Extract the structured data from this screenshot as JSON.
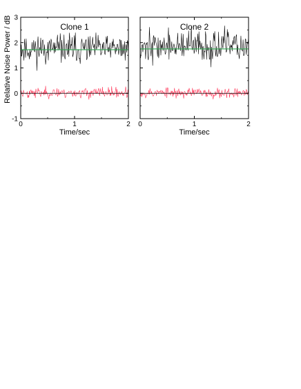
{
  "figure": {
    "ylabel": "Relative Noise Power / dB"
  },
  "chart_data": [
    {
      "type": "line",
      "title": "Clone 1",
      "xlabel": "Time/sec",
      "ylabel": "Relative Noise Power / dB",
      "xlim": [
        0,
        2
      ],
      "ylim": [
        -1,
        3
      ],
      "xticks": [
        0,
        1,
        2
      ],
      "yticks": [
        -1,
        0,
        1,
        2,
        3
      ],
      "grid": false,
      "legend": "none",
      "series": [
        {
          "color": "#000000",
          "mean": 1.75,
          "spread": 0.28,
          "points": 200,
          "seed": 11
        },
        {
          "color": "#2fa84f",
          "constant": 1.72
        },
        {
          "color": "#ff3355",
          "mean": 0.02,
          "spread": 0.1,
          "points": 200,
          "seed": 23
        },
        {
          "color": "#000000",
          "constant": 0
        }
      ]
    },
    {
      "type": "line",
      "title": "Clone 2",
      "xlabel": "Time/sec",
      "ylabel": "",
      "xlim": [
        0,
        2
      ],
      "ylim": [
        -1,
        3
      ],
      "xticks": [
        0,
        1,
        2
      ],
      "yticks": [
        -1,
        0,
        1,
        2,
        3
      ],
      "grid": false,
      "legend": "none",
      "series": [
        {
          "color": "#000000",
          "mean": 1.85,
          "spread": 0.3,
          "points": 200,
          "seed": 37
        },
        {
          "color": "#2fa84f",
          "constant": 1.75
        },
        {
          "color": "#ff3355",
          "mean": 0.02,
          "spread": 0.1,
          "points": 200,
          "seed": 53
        },
        {
          "color": "#000000",
          "constant": 0
        }
      ]
    }
  ]
}
